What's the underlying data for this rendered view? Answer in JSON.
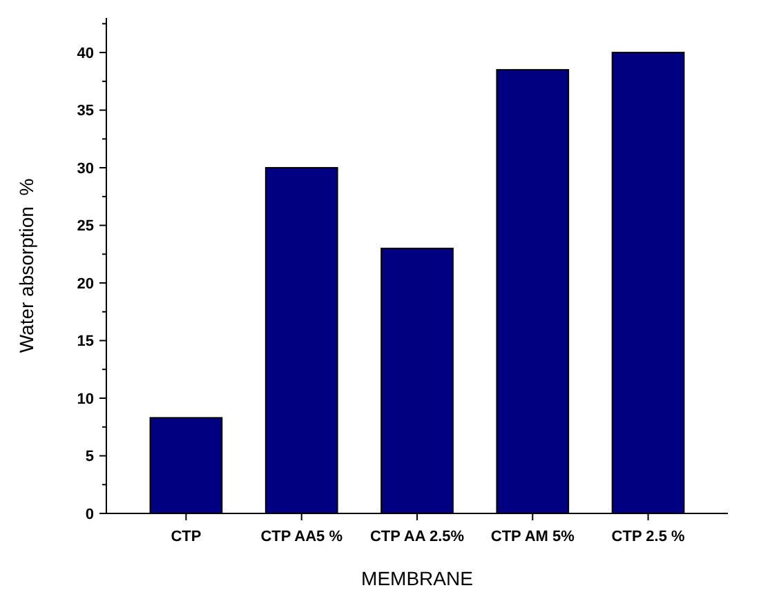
{
  "chart_data": {
    "type": "bar",
    "xlabel": "MEMBRANE",
    "ylabel": "Water absorption  %",
    "categories": [
      "CTP",
      "CTP AA5 %",
      "CTP AA 2.5%",
      "CTP AM 5%",
      "CTP 2.5 %"
    ],
    "values": [
      8.3,
      30,
      23,
      38.5,
      40
    ],
    "color": "#000080",
    "ylim": [
      0,
      43
    ],
    "yticks": [
      0,
      {
        "value": 2.5,
        "label": null
      },
      5,
      {
        "value": 7.5,
        "label": null
      },
      10,
      {
        "value": 12.5,
        "label": null
      },
      15,
      {
        "value": 17.5,
        "label": null
      },
      20,
      {
        "value": 22.5,
        "label": null
      },
      25,
      {
        "value": 27.5,
        "label": null
      },
      30,
      {
        "value": 32.5,
        "label": null
      },
      35,
      {
        "value": 37.5,
        "label": null
      },
      40,
      {
        "value": 42.5,
        "label": null
      }
    ],
    "grid": false
  }
}
